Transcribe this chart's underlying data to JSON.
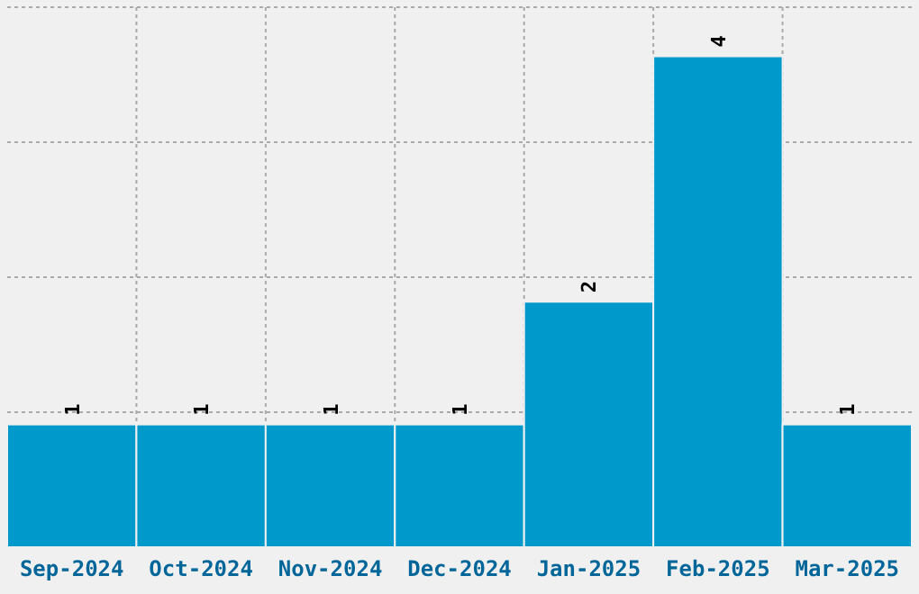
{
  "chart_data": {
    "type": "bar",
    "categories": [
      "Sep-2024",
      "Oct-2024",
      "Nov-2024",
      "Dec-2024",
      "Jan-2025",
      "Feb-2025",
      "Mar-2025"
    ],
    "values": [
      1,
      1,
      1,
      1,
      2,
      4,
      1
    ],
    "color": "#0099cc",
    "data_labels": true,
    "grid": true,
    "ylim": [
      0,
      4.4
    ],
    "yticks": [
      {
        "value": 1.1,
        "label": null
      },
      {
        "value": 2.2,
        "label": null
      },
      {
        "value": 3.3,
        "label": null
      },
      {
        "value": 4.4,
        "label": null
      }
    ],
    "tick_labels": "x"
  }
}
